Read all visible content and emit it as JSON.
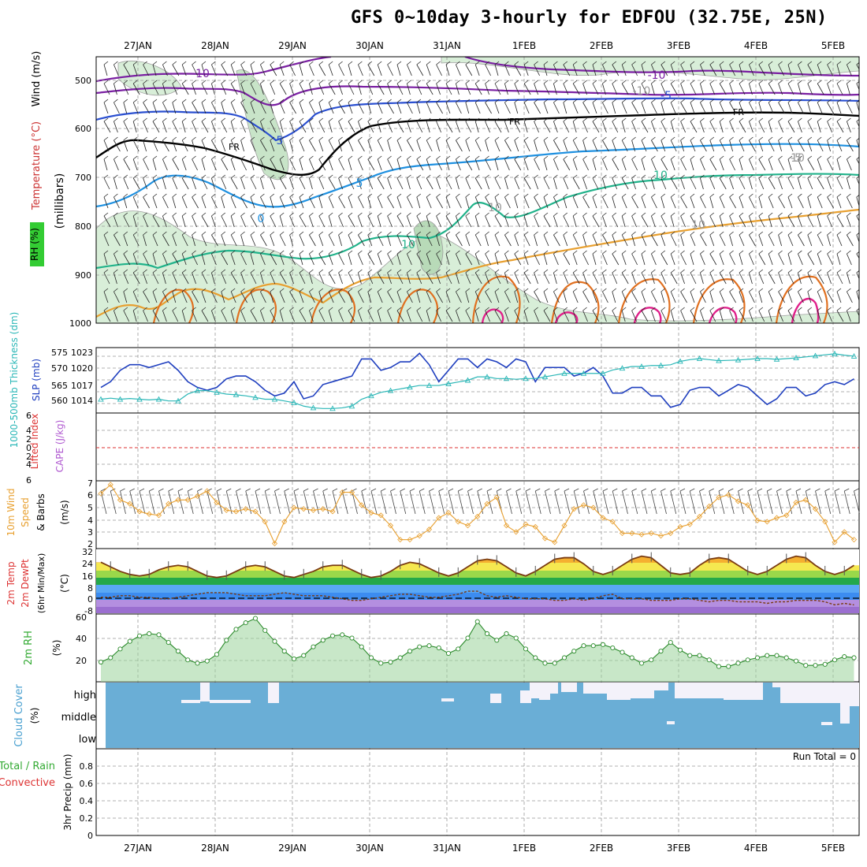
{
  "title": "GFS 0~10day 3-hourly for EDFOU (32.75E, 25N)",
  "colors": {
    "frame": "#000000",
    "grid": "#999999",
    "slp": "#1f3fbf",
    "thickness": "#2bb7b7",
    "wind10m": "#e8a030",
    "temp": "#7a3b12",
    "dewpt": "#7a3b12",
    "rh2m_line": "#2a8a2a",
    "rh2m_fill": "#5cc05c",
    "cloud": "#6aaed6",
    "lifted_index_zero": "#dd3333",
    "fr_line": "#000000",
    "t_m10": "#7a1fa2",
    "t_m5": "#2a4fd0",
    "t_0": "#1e90e0",
    "t_5": "#1e90e0",
    "t_10": "#20b28a",
    "t_15": "#e8a030",
    "t_20": "#e07020",
    "t_25": "#e0208a",
    "rh_fill": "#bfe2bf"
  },
  "date_labels": [
    "27JAN",
    "28JAN",
    "29JAN",
    "30JAN",
    "31JAN",
    "1FEB",
    "2FEB",
    "3FEB",
    "4FEB",
    "5FEB"
  ],
  "panels": {
    "upper": {
      "ylabel_rh": "RH (%)",
      "ylabel_temp": "Temperature (°C)",
      "ylabel_wind": "Wind (m/s)",
      "ylabel_unit": "(millibars)",
      "ticks": [
        "500",
        "600",
        "700",
        "800",
        "900",
        "1000"
      ],
      "contour_labels": [
        "10",
        "-10",
        "-5",
        "5",
        "FR",
        "FR",
        "FR",
        "5",
        "0",
        "10",
        "10",
        "10",
        "10",
        "-10",
        "-5",
        "10"
      ]
    },
    "slp": {
      "ylabel_left": "1000-500mb Thickness (dm)",
      "ylabel_right": "SLP (mb)",
      "left_ticks": [
        "575",
        "570",
        "565",
        "560"
      ],
      "right_ticks": [
        "1023",
        "1020",
        "1017",
        "1014"
      ]
    },
    "cape": {
      "ylabel_left": "Lifted Index",
      "ylabel_right": "CAPE (J/kg)",
      "ticks": [
        "6",
        "4",
        "2",
        "0",
        "2",
        "4",
        "6"
      ]
    },
    "wind10m": {
      "ylabel_a": "10m Wind",
      "ylabel_b": "Speed",
      "ylabel_c": "& Barbs",
      "ylabel_unit": "(m/s)",
      "ticks": [
        "7",
        "6",
        "5",
        "4",
        "3",
        "2"
      ]
    },
    "temp": {
      "ylabel_a": "2m Temp",
      "ylabel_b": "2m DewPt",
      "ylabel_c": "(6hr Min/Max)",
      "ylabel_unit": "(°C)",
      "ticks": [
        "32",
        "24",
        "16",
        "8",
        "0",
        "-8"
      ]
    },
    "rh2m": {
      "ylabel": "2m RH",
      "ylabel_unit": "(%)",
      "ticks": [
        "60",
        "40",
        "20"
      ]
    },
    "cloud": {
      "ylabel": "Cloud Cover",
      "ylabel_unit": "(%)",
      "levels": [
        "high",
        "middle",
        "low"
      ]
    },
    "precip": {
      "ylabel_left_a": "Total / Rain",
      "ylabel_left_b": "Convective",
      "ylabel_right": "3hr Precip (mm)",
      "ticks": [
        "0.8",
        "0.6",
        "0.4",
        "0.2",
        "0"
      ],
      "run_total": "Run Total = 0"
    }
  },
  "chart_data": [
    {
      "type": "line",
      "name": "SLP (mb)",
      "x_start": "26JAN 15Z",
      "x_step_hours": 3,
      "ylim": [
        1011.5,
        1023
      ],
      "values": [
        1016,
        1017,
        1019,
        1020,
        1020,
        1019.5,
        1020,
        1020.5,
        1019,
        1017,
        1016,
        1015.5,
        1016,
        1017.5,
        1018,
        1018,
        1017,
        1015.5,
        1014.5,
        1015,
        1017,
        1014,
        1014.5,
        1016.5,
        1017,
        1017.5,
        1018,
        1021,
        1021,
        1019,
        1019.5,
        1020.5,
        1020.5,
        1022,
        1020,
        1017,
        1019,
        1021,
        1021,
        1019.5,
        1021,
        1020.5,
        1019.5,
        1021,
        1020.5,
        1017,
        1019.5,
        1019.5,
        1019.5,
        1018,
        1018.5,
        1019.5,
        1018,
        1015,
        1015,
        1016,
        1016,
        1014.5,
        1014.5,
        1012.5,
        1013,
        1015.5,
        1016,
        1016,
        1014.5,
        1015.5,
        1016.5,
        1016,
        1014.5,
        1013,
        1014,
        1016,
        1016,
        1014.5,
        1015,
        1016.5,
        1017,
        1016.5,
        1017.5,
        1016.5,
        1013.5,
        1013.5,
        1015,
        1015.5,
        1015,
        1015.5,
        1016,
        1015.5,
        1016.5
      ]
    },
    {
      "type": "line",
      "name": "1000-500mb Thickness (dm)",
      "x_start": "26JAN 15Z",
      "x_step_hours": 3,
      "ylim": [
        557,
        576
      ],
      "values": [
        561,
        561.3,
        561,
        561.2,
        561,
        560.8,
        561,
        560.5,
        560.5,
        562.5,
        563.5,
        563.5,
        563,
        562.5,
        562.3,
        562,
        561.5,
        561,
        561,
        560.5,
        560,
        559,
        558.5,
        558.3,
        558.3,
        558.5,
        559,
        561,
        562,
        563,
        563.5,
        564,
        564.5,
        565,
        565,
        565,
        565.5,
        566,
        566.5,
        567.5,
        567.5,
        567,
        567,
        566.8,
        567,
        567,
        567.5,
        568,
        568.5,
        568.5,
        568.5,
        568.5,
        568.5,
        569.5,
        570,
        570.5,
        570.5,
        570.8,
        570.8,
        571,
        572,
        572.5,
        572.8,
        572.5,
        572.2,
        572.3,
        572.4,
        572.6,
        572.8,
        572.8,
        572.6,
        572.8,
        573,
        573.3,
        573.6,
        573.9,
        574.2,
        573.8,
        573.5,
        573.5,
        573.2,
        573,
        572.5,
        572.3
      ]
    },
    {
      "type": "line",
      "name": "10m Wind Speed (m/s)",
      "x_start": "26JAN 15Z",
      "x_step_hours": 3,
      "ylim": [
        1.7,
        7
      ],
      "values": [
        6,
        6.7,
        5.5,
        5.2,
        4.6,
        4.4,
        4.3,
        5.2,
        5.5,
        5.5,
        5.8,
        6.2,
        5.3,
        4.7,
        4.6,
        4.8,
        4.6,
        3.8,
        2.1,
        3.8,
        4.9,
        4.8,
        4.7,
        4.8,
        4.6,
        6.1,
        6.1,
        5.1,
        4.5,
        4.3,
        3.5,
        2.4,
        2.4,
        2.7,
        3.2,
        4.1,
        4.5,
        3.8,
        3.5,
        4.2,
        5.2,
        5.7,
        3.5,
        3,
        3.6,
        3.4,
        2.5,
        2.2,
        3.5,
        4.8,
        5.1,
        4.9,
        4.1,
        3.8,
        2.9,
        2.9,
        2.8,
        2.9,
        2.7,
        2.9,
        3.4,
        3.6,
        4.2,
        5,
        5.7,
        5.9,
        5.4,
        5.1,
        3.9,
        3.8,
        4.1,
        4.3,
        5.3,
        5.5,
        4.8,
        3.8,
        2.2,
        3,
        2.4,
        3.4,
        4.9,
        5.5,
        4.6,
        3.8,
        3.8,
        3.4,
        3.2,
        2.7,
        3.9
      ]
    },
    {
      "type": "area",
      "name": "2m Temp (°C)",
      "x_start": "26JAN 15Z",
      "x_step_hours": 3,
      "ylim": [
        -10,
        33
      ],
      "values": [
        24,
        21,
        18,
        16,
        15,
        16,
        19,
        21,
        22,
        21,
        18,
        15,
        14,
        15,
        18,
        21,
        22,
        21,
        18,
        15,
        14,
        16,
        18,
        21,
        22,
        22,
        19,
        16,
        14,
        15,
        18,
        22,
        24,
        23,
        20,
        17,
        15,
        17,
        21,
        25,
        26,
        25,
        21,
        17,
        15,
        18,
        22,
        26,
        27,
        27,
        23,
        18,
        16,
        18,
        22,
        26,
        28,
        27,
        22,
        17,
        16,
        17,
        22,
        26,
        27,
        26,
        22,
        18,
        16,
        18,
        22,
        26,
        28,
        27,
        22,
        18,
        16,
        18,
        22,
        26,
        29,
        28,
        24,
        20,
        17,
        17,
        20
      ]
    },
    {
      "type": "line",
      "name": "2m DewPt (°C)",
      "x_start": "26JAN 15Z",
      "x_step_hours": 3,
      "ylim": [
        -10,
        33
      ],
      "values": [
        1,
        1,
        2,
        2,
        1,
        1,
        0,
        0,
        1,
        2,
        3,
        4,
        4,
        4,
        3,
        2,
        2,
        2,
        3,
        4,
        3,
        2,
        2,
        2,
        1,
        0,
        -1,
        -1,
        0,
        1,
        2,
        3,
        3,
        2,
        1,
        1,
        2,
        3,
        5,
        5,
        2,
        1,
        2,
        1,
        0,
        0,
        0,
        -1,
        -1,
        0,
        -1,
        0,
        2,
        3,
        0,
        0,
        0,
        -1,
        -1,
        -1,
        0,
        0,
        -1,
        -2,
        -1,
        -1,
        -2,
        -2,
        -2,
        -3,
        -2,
        -2,
        -1,
        -1,
        -1,
        -2,
        -4,
        -3,
        -4,
        -2,
        -3,
        -4,
        -3,
        0,
        1,
        1,
        0,
        -1
      ]
    },
    {
      "type": "area",
      "name": "2m RH (%)",
      "x_start": "26JAN 15Z",
      "x_step_hours": 3,
      "ylim": [
        0,
        62
      ],
      "values": [
        18,
        22,
        30,
        37,
        42,
        44,
        43,
        36,
        28,
        20,
        17,
        19,
        25,
        38,
        48,
        54,
        58,
        47,
        37,
        28,
        21,
        24,
        32,
        38,
        42,
        43,
        40,
        32,
        22,
        17,
        18,
        22,
        28,
        32,
        33,
        31,
        26,
        30,
        40,
        55,
        44,
        38,
        44,
        40,
        30,
        22,
        17,
        17,
        22,
        28,
        33,
        33,
        34,
        31,
        27,
        22,
        17,
        20,
        28,
        36,
        29,
        24,
        24,
        20,
        14,
        14,
        17,
        20,
        22,
        24,
        24,
        22,
        19,
        15,
        15,
        16,
        20,
        23,
        22,
        19,
        15,
        10,
        11,
        16,
        22,
        26,
        27,
        24,
        21
      ]
    },
    {
      "type": "bar",
      "name": "3hr Precip (mm)",
      "ylim": [
        0,
        1
      ],
      "values": []
    }
  ]
}
